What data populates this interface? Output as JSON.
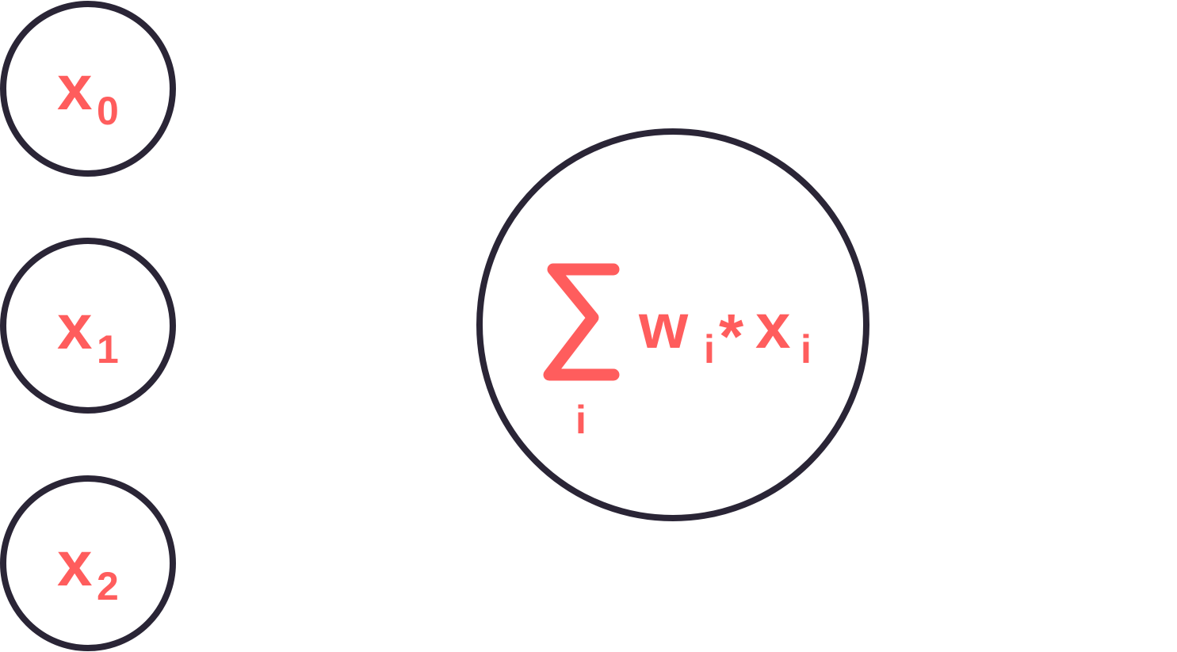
{
  "colors": {
    "text": "#ff5d5d",
    "stroke": "#2a2536",
    "background": "#ffffff"
  },
  "inputs": [
    {
      "symbol": "x",
      "subscript": "0"
    },
    {
      "symbol": "x",
      "subscript": "1"
    },
    {
      "symbol": "x",
      "subscript": "2"
    }
  ],
  "neuron": {
    "sum_symbol": "∑",
    "sum_index": "i",
    "weight_symbol": "w",
    "weight_index": "i",
    "operator": "*",
    "input_symbol": "x",
    "input_index": "i"
  }
}
